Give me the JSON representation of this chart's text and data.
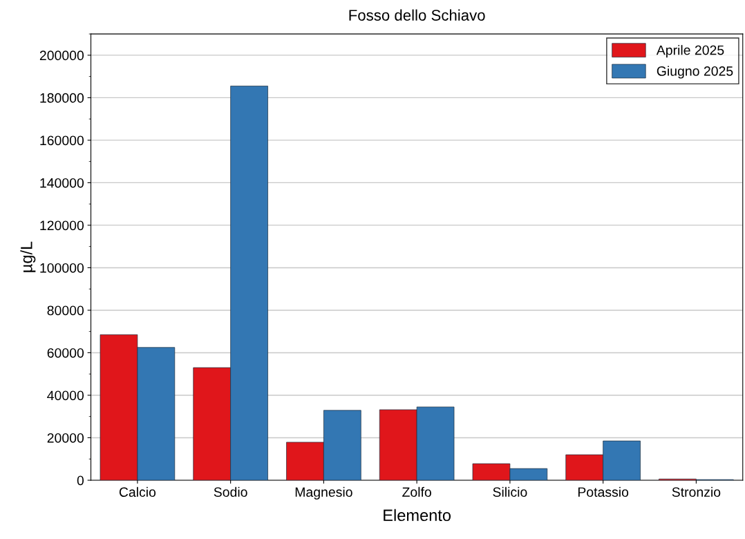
{
  "chart_data": {
    "type": "bar",
    "title": "Fosso dello Schiavo",
    "xlabel": "Elemento",
    "ylabel": "µg/L",
    "categories": [
      "Calcio",
      "Sodio",
      "Magnesio",
      "Zolfo",
      "Silicio",
      "Potassio",
      "Stronzio"
    ],
    "series": [
      {
        "name": "Aprile 2025",
        "color": "#e0161b",
        "values": [
          68500,
          53000,
          17900,
          33200,
          7800,
          12000,
          600
        ]
      },
      {
        "name": "Giugno 2025",
        "color": "#3377b3",
        "values": [
          62500,
          185500,
          32900,
          34500,
          5500,
          18500,
          300
        ]
      }
    ],
    "ylim": [
      0,
      210000
    ],
    "yticks": [
      0,
      20000,
      40000,
      60000,
      80000,
      100000,
      120000,
      140000,
      160000,
      180000,
      200000
    ],
    "grid": "y",
    "legend": "top right"
  }
}
